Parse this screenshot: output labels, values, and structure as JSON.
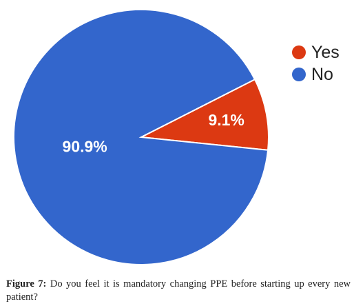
{
  "chart_data": {
    "type": "pie",
    "title": "",
    "categories": [
      "Yes",
      "No"
    ],
    "values": [
      9.1,
      90.9
    ],
    "value_labels": [
      "9.1%",
      "90.9%"
    ],
    "colors": [
      "#dc3912",
      "#3366cc"
    ],
    "legend": {
      "position": "top-right",
      "entries": [
        "Yes",
        "No"
      ]
    }
  },
  "caption": {
    "label": "Figure 7:",
    "text": "Do you feel it is mandatory changing PPE before starting up every new patient?"
  }
}
